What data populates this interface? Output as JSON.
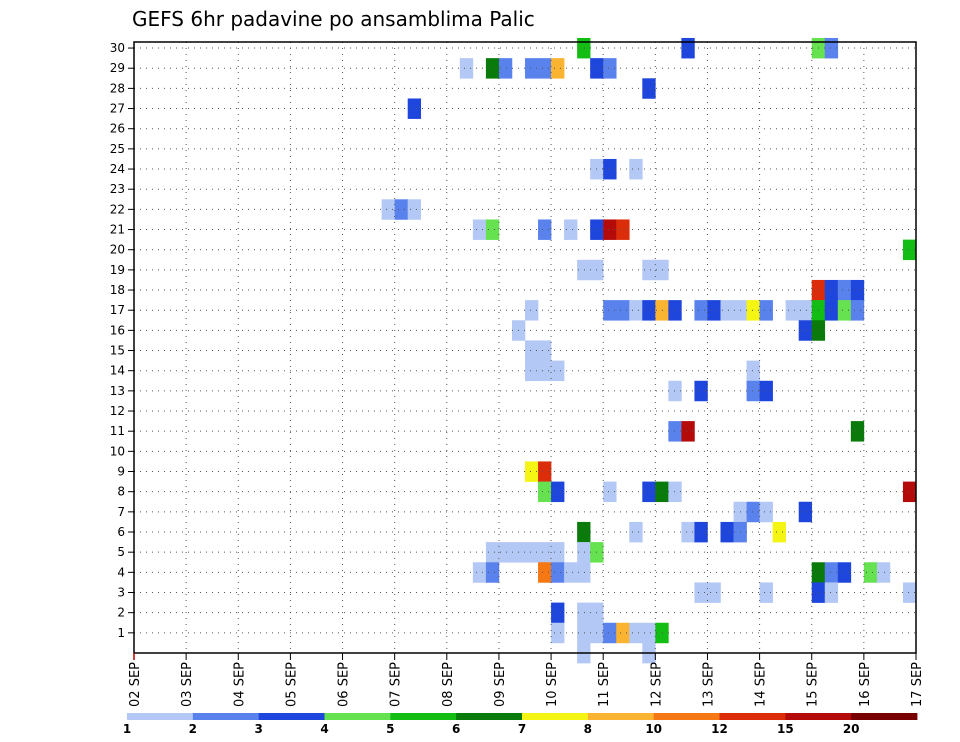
{
  "chart_data": {
    "type": "heatmap",
    "title": "GEFS 6hr padavine po ansamblima Palic",
    "xlabel": "",
    "ylabel": "",
    "x_tick_labels": [
      "02 SEP",
      "03 SEP",
      "04 SEP",
      "05 SEP",
      "06 SEP",
      "07 SEP",
      "08 SEP",
      "09 SEP",
      "10 SEP",
      "11 SEP",
      "12 SEP",
      "13 SEP",
      "14 SEP",
      "15 SEP",
      "16 SEP",
      "17 SEP"
    ],
    "y_tick_labels": [
      "1",
      "2",
      "3",
      "4",
      "5",
      "6",
      "7",
      "8",
      "9",
      "10",
      "11",
      "12",
      "13",
      "14",
      "15",
      "16",
      "17",
      "18",
      "19",
      "20",
      "21",
      "22",
      "23",
      "24",
      "25",
      "26",
      "27",
      "28",
      "29",
      "30"
    ],
    "x_unit": "6-hour step since 02 SEP 00Z",
    "xlim": [
      0,
      60
    ],
    "ylim": [
      0,
      30
    ],
    "grid": true,
    "legend_position": "bottom",
    "color_scale": {
      "breaks": [
        "1",
        "2",
        "3",
        "4",
        "5",
        "6",
        "7",
        "8",
        "10",
        "12",
        "15",
        "20"
      ],
      "colors": [
        "#b4c8f5",
        "#5a82ec",
        "#1e46dc",
        "#66e150",
        "#14bd14",
        "#0a7a0a",
        "#f5f514",
        "#fab432",
        "#f57814",
        "#dc2d0a",
        "#b40a0a",
        "#780000"
      ]
    },
    "cells": [
      {
        "member": 30,
        "step": 34.5,
        "cat": 4
      },
      {
        "member": 30,
        "step": 42.5,
        "cat": 2
      },
      {
        "member": 30,
        "step": 52.5,
        "cat": 3
      },
      {
        "member": 30,
        "step": 53.5,
        "cat": 1
      },
      {
        "member": 29,
        "step": 25.5,
        "cat": 0
      },
      {
        "member": 29,
        "step": 27.5,
        "cat": 5
      },
      {
        "member": 29,
        "step": 28.5,
        "cat": 1
      },
      {
        "member": 29,
        "step": 30.5,
        "cat": 1
      },
      {
        "member": 29,
        "step": 31.5,
        "cat": 1
      },
      {
        "member": 29,
        "step": 32.5,
        "cat": 7
      },
      {
        "member": 29,
        "step": 35.5,
        "cat": 2
      },
      {
        "member": 29,
        "step": 36.5,
        "cat": 1
      },
      {
        "member": 28,
        "step": 39.5,
        "cat": 2
      },
      {
        "member": 27,
        "step": 21.5,
        "cat": 2
      },
      {
        "member": 24,
        "step": 35.5,
        "cat": 0
      },
      {
        "member": 24,
        "step": 36.5,
        "cat": 2
      },
      {
        "member": 24,
        "step": 38.5,
        "cat": 0
      },
      {
        "member": 22,
        "step": 19.5,
        "cat": 0
      },
      {
        "member": 22,
        "step": 20.5,
        "cat": 1
      },
      {
        "member": 22,
        "step": 21.5,
        "cat": 0
      },
      {
        "member": 21,
        "step": 26.5,
        "cat": 0
      },
      {
        "member": 21,
        "step": 27.5,
        "cat": 3
      },
      {
        "member": 21,
        "step": 31.5,
        "cat": 1
      },
      {
        "member": 21,
        "step": 33.5,
        "cat": 0
      },
      {
        "member": 21,
        "step": 35.5,
        "cat": 2
      },
      {
        "member": 21,
        "step": 36.5,
        "cat": 10
      },
      {
        "member": 21,
        "step": 37.5,
        "cat": 9
      },
      {
        "member": 20,
        "step": 59.5,
        "cat": 4
      },
      {
        "member": 19,
        "step": 34.5,
        "cat": 0
      },
      {
        "member": 19,
        "step": 35.5,
        "cat": 0
      },
      {
        "member": 19,
        "step": 39.5,
        "cat": 0
      },
      {
        "member": 19,
        "step": 40.5,
        "cat": 0
      },
      {
        "member": 18,
        "step": 52.5,
        "cat": 9
      },
      {
        "member": 18,
        "step": 53.5,
        "cat": 2
      },
      {
        "member": 18,
        "step": 54.5,
        "cat": 1
      },
      {
        "member": 18,
        "step": 55.5,
        "cat": 2
      },
      {
        "member": 17,
        "step": 30.5,
        "cat": 0
      },
      {
        "member": 17,
        "step": 36.5,
        "cat": 1
      },
      {
        "member": 17,
        "step": 37.5,
        "cat": 1
      },
      {
        "member": 17,
        "step": 38.5,
        "cat": 0
      },
      {
        "member": 17,
        "step": 39.5,
        "cat": 2
      },
      {
        "member": 17,
        "step": 40.5,
        "cat": 7
      },
      {
        "member": 17,
        "step": 41.5,
        "cat": 2
      },
      {
        "member": 17,
        "step": 43.5,
        "cat": 1
      },
      {
        "member": 17,
        "step": 44.5,
        "cat": 2
      },
      {
        "member": 17,
        "step": 45.5,
        "cat": 0
      },
      {
        "member": 17,
        "step": 46.5,
        "cat": 0
      },
      {
        "member": 17,
        "step": 47.5,
        "cat": 6
      },
      {
        "member": 17,
        "step": 48.5,
        "cat": 1
      },
      {
        "member": 17,
        "step": 50.5,
        "cat": 0
      },
      {
        "member": 17,
        "step": 51.5,
        "cat": 0
      },
      {
        "member": 17,
        "step": 52.5,
        "cat": 4
      },
      {
        "member": 17,
        "step": 53.5,
        "cat": 2
      },
      {
        "member": 17,
        "step": 54.5,
        "cat": 3
      },
      {
        "member": 17,
        "step": 55.5,
        "cat": 1
      },
      {
        "member": 16,
        "step": 29.5,
        "cat": 0
      },
      {
        "member": 16,
        "step": 51.5,
        "cat": 2
      },
      {
        "member": 16,
        "step": 52.5,
        "cat": 5
      },
      {
        "member": 15,
        "step": 30.5,
        "cat": 0
      },
      {
        "member": 15,
        "step": 31.5,
        "cat": 0
      },
      {
        "member": 14,
        "step": 30.5,
        "cat": 0
      },
      {
        "member": 14,
        "step": 31.5,
        "cat": 0
      },
      {
        "member": 14,
        "step": 32.5,
        "cat": 0
      },
      {
        "member": 14,
        "step": 47.5,
        "cat": 0
      },
      {
        "member": 13,
        "step": 41.5,
        "cat": 0
      },
      {
        "member": 13,
        "step": 43.5,
        "cat": 2
      },
      {
        "member": 13,
        "step": 47.5,
        "cat": 1
      },
      {
        "member": 13,
        "step": 48.5,
        "cat": 2
      },
      {
        "member": 11,
        "step": 41.5,
        "cat": 1
      },
      {
        "member": 11,
        "step": 42.5,
        "cat": 10
      },
      {
        "member": 11,
        "step": 55.5,
        "cat": 5
      },
      {
        "member": 9,
        "step": 30.5,
        "cat": 6
      },
      {
        "member": 9,
        "step": 31.5,
        "cat": 9
      },
      {
        "member": 8,
        "step": 31.5,
        "cat": 3
      },
      {
        "member": 8,
        "step": 32.5,
        "cat": 2
      },
      {
        "member": 8,
        "step": 36.5,
        "cat": 0
      },
      {
        "member": 8,
        "step": 39.5,
        "cat": 2
      },
      {
        "member": 8,
        "step": 40.5,
        "cat": 5
      },
      {
        "member": 8,
        "step": 41.5,
        "cat": 0
      },
      {
        "member": 8,
        "step": 59.5,
        "cat": 10
      },
      {
        "member": 7,
        "step": 46.5,
        "cat": 0
      },
      {
        "member": 7,
        "step": 47.5,
        "cat": 1
      },
      {
        "member": 7,
        "step": 48.5,
        "cat": 0
      },
      {
        "member": 7,
        "step": 51.5,
        "cat": 2
      },
      {
        "member": 6,
        "step": 34.5,
        "cat": 5
      },
      {
        "member": 6,
        "step": 38.5,
        "cat": 0
      },
      {
        "member": 6,
        "step": 42.5,
        "cat": 0
      },
      {
        "member": 6,
        "step": 43.5,
        "cat": 2
      },
      {
        "member": 6,
        "step": 45.5,
        "cat": 2
      },
      {
        "member": 6,
        "step": 46.5,
        "cat": 1
      },
      {
        "member": 6,
        "step": 49.5,
        "cat": 6
      },
      {
        "member": 5,
        "step": 27.5,
        "cat": 0
      },
      {
        "member": 5,
        "step": 28.5,
        "cat": 0
      },
      {
        "member": 5,
        "step": 29.5,
        "cat": 0
      },
      {
        "member": 5,
        "step": 30.5,
        "cat": 0
      },
      {
        "member": 5,
        "step": 31.5,
        "cat": 0
      },
      {
        "member": 5,
        "step": 32.5,
        "cat": 0
      },
      {
        "member": 5,
        "step": 34.5,
        "cat": 0
      },
      {
        "member": 5,
        "step": 35.5,
        "cat": 3
      },
      {
        "member": 4,
        "step": 26.5,
        "cat": 0
      },
      {
        "member": 4,
        "step": 27.5,
        "cat": 1
      },
      {
        "member": 4,
        "step": 31.5,
        "cat": 8
      },
      {
        "member": 4,
        "step": 32.5,
        "cat": 1
      },
      {
        "member": 4,
        "step": 33.5,
        "cat": 0
      },
      {
        "member": 4,
        "step": 34.5,
        "cat": 0
      },
      {
        "member": 4,
        "step": 52.5,
        "cat": 5
      },
      {
        "member": 4,
        "step": 53.5,
        "cat": 1
      },
      {
        "member": 4,
        "step": 54.5,
        "cat": 2
      },
      {
        "member": 4,
        "step": 56.5,
        "cat": 3
      },
      {
        "member": 4,
        "step": 57.5,
        "cat": 0
      },
      {
        "member": 3,
        "step": 43.5,
        "cat": 0
      },
      {
        "member": 3,
        "step": 44.5,
        "cat": 0
      },
      {
        "member": 3,
        "step": 48.5,
        "cat": 0
      },
      {
        "member": 3,
        "step": 52.5,
        "cat": 2
      },
      {
        "member": 3,
        "step": 53.5,
        "cat": 0
      },
      {
        "member": 3,
        "step": 59.5,
        "cat": 0
      },
      {
        "member": 2,
        "step": 32.5,
        "cat": 2
      },
      {
        "member": 2,
        "step": 34.5,
        "cat": 0
      },
      {
        "member": 2,
        "step": 35.5,
        "cat": 0
      },
      {
        "member": 1,
        "step": 32.5,
        "cat": 0
      },
      {
        "member": 1,
        "step": 34.5,
        "cat": 0
      },
      {
        "member": 1,
        "step": 35.5,
        "cat": 0
      },
      {
        "member": 1,
        "step": 36.5,
        "cat": 1
      },
      {
        "member": 1,
        "step": 37.5,
        "cat": 7
      },
      {
        "member": 1,
        "step": 38.5,
        "cat": 0
      },
      {
        "member": 1,
        "step": 39.5,
        "cat": 0
      },
      {
        "member": 1,
        "step": 40.5,
        "cat": 4
      },
      {
        "member": 0,
        "step": 34.5,
        "cat": 0
      },
      {
        "member": 0,
        "step": 39.5,
        "cat": 0
      }
    ]
  }
}
